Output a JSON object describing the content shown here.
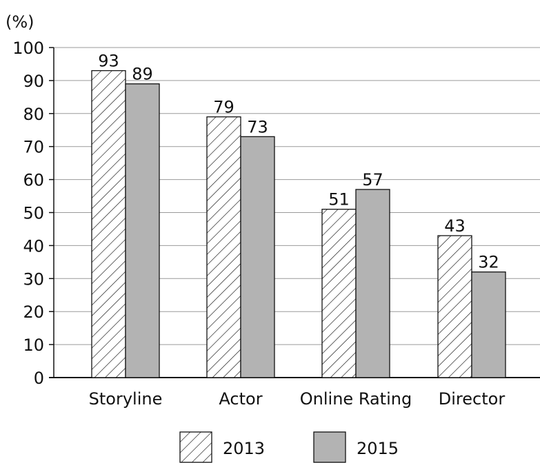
{
  "chart_data": {
    "type": "bar",
    "unit_label": "(%)",
    "categories": [
      "Storyline",
      "Actor",
      "Online Rating",
      "Director"
    ],
    "series": [
      {
        "name": "2013",
        "values": [
          93,
          79,
          51,
          43
        ],
        "fill": "hatched",
        "color": "#ffffff"
      },
      {
        "name": "2015",
        "values": [
          89,
          73,
          57,
          32
        ],
        "fill": "solid",
        "color": "#b3b3b3"
      }
    ],
    "y_ticks": [
      0,
      10,
      20,
      30,
      40,
      50,
      60,
      70,
      80,
      90,
      100
    ],
    "ylim": [
      0,
      100
    ],
    "grid": true,
    "legend_position": "bottom",
    "title": "",
    "xlabel": "",
    "ylabel": ""
  }
}
